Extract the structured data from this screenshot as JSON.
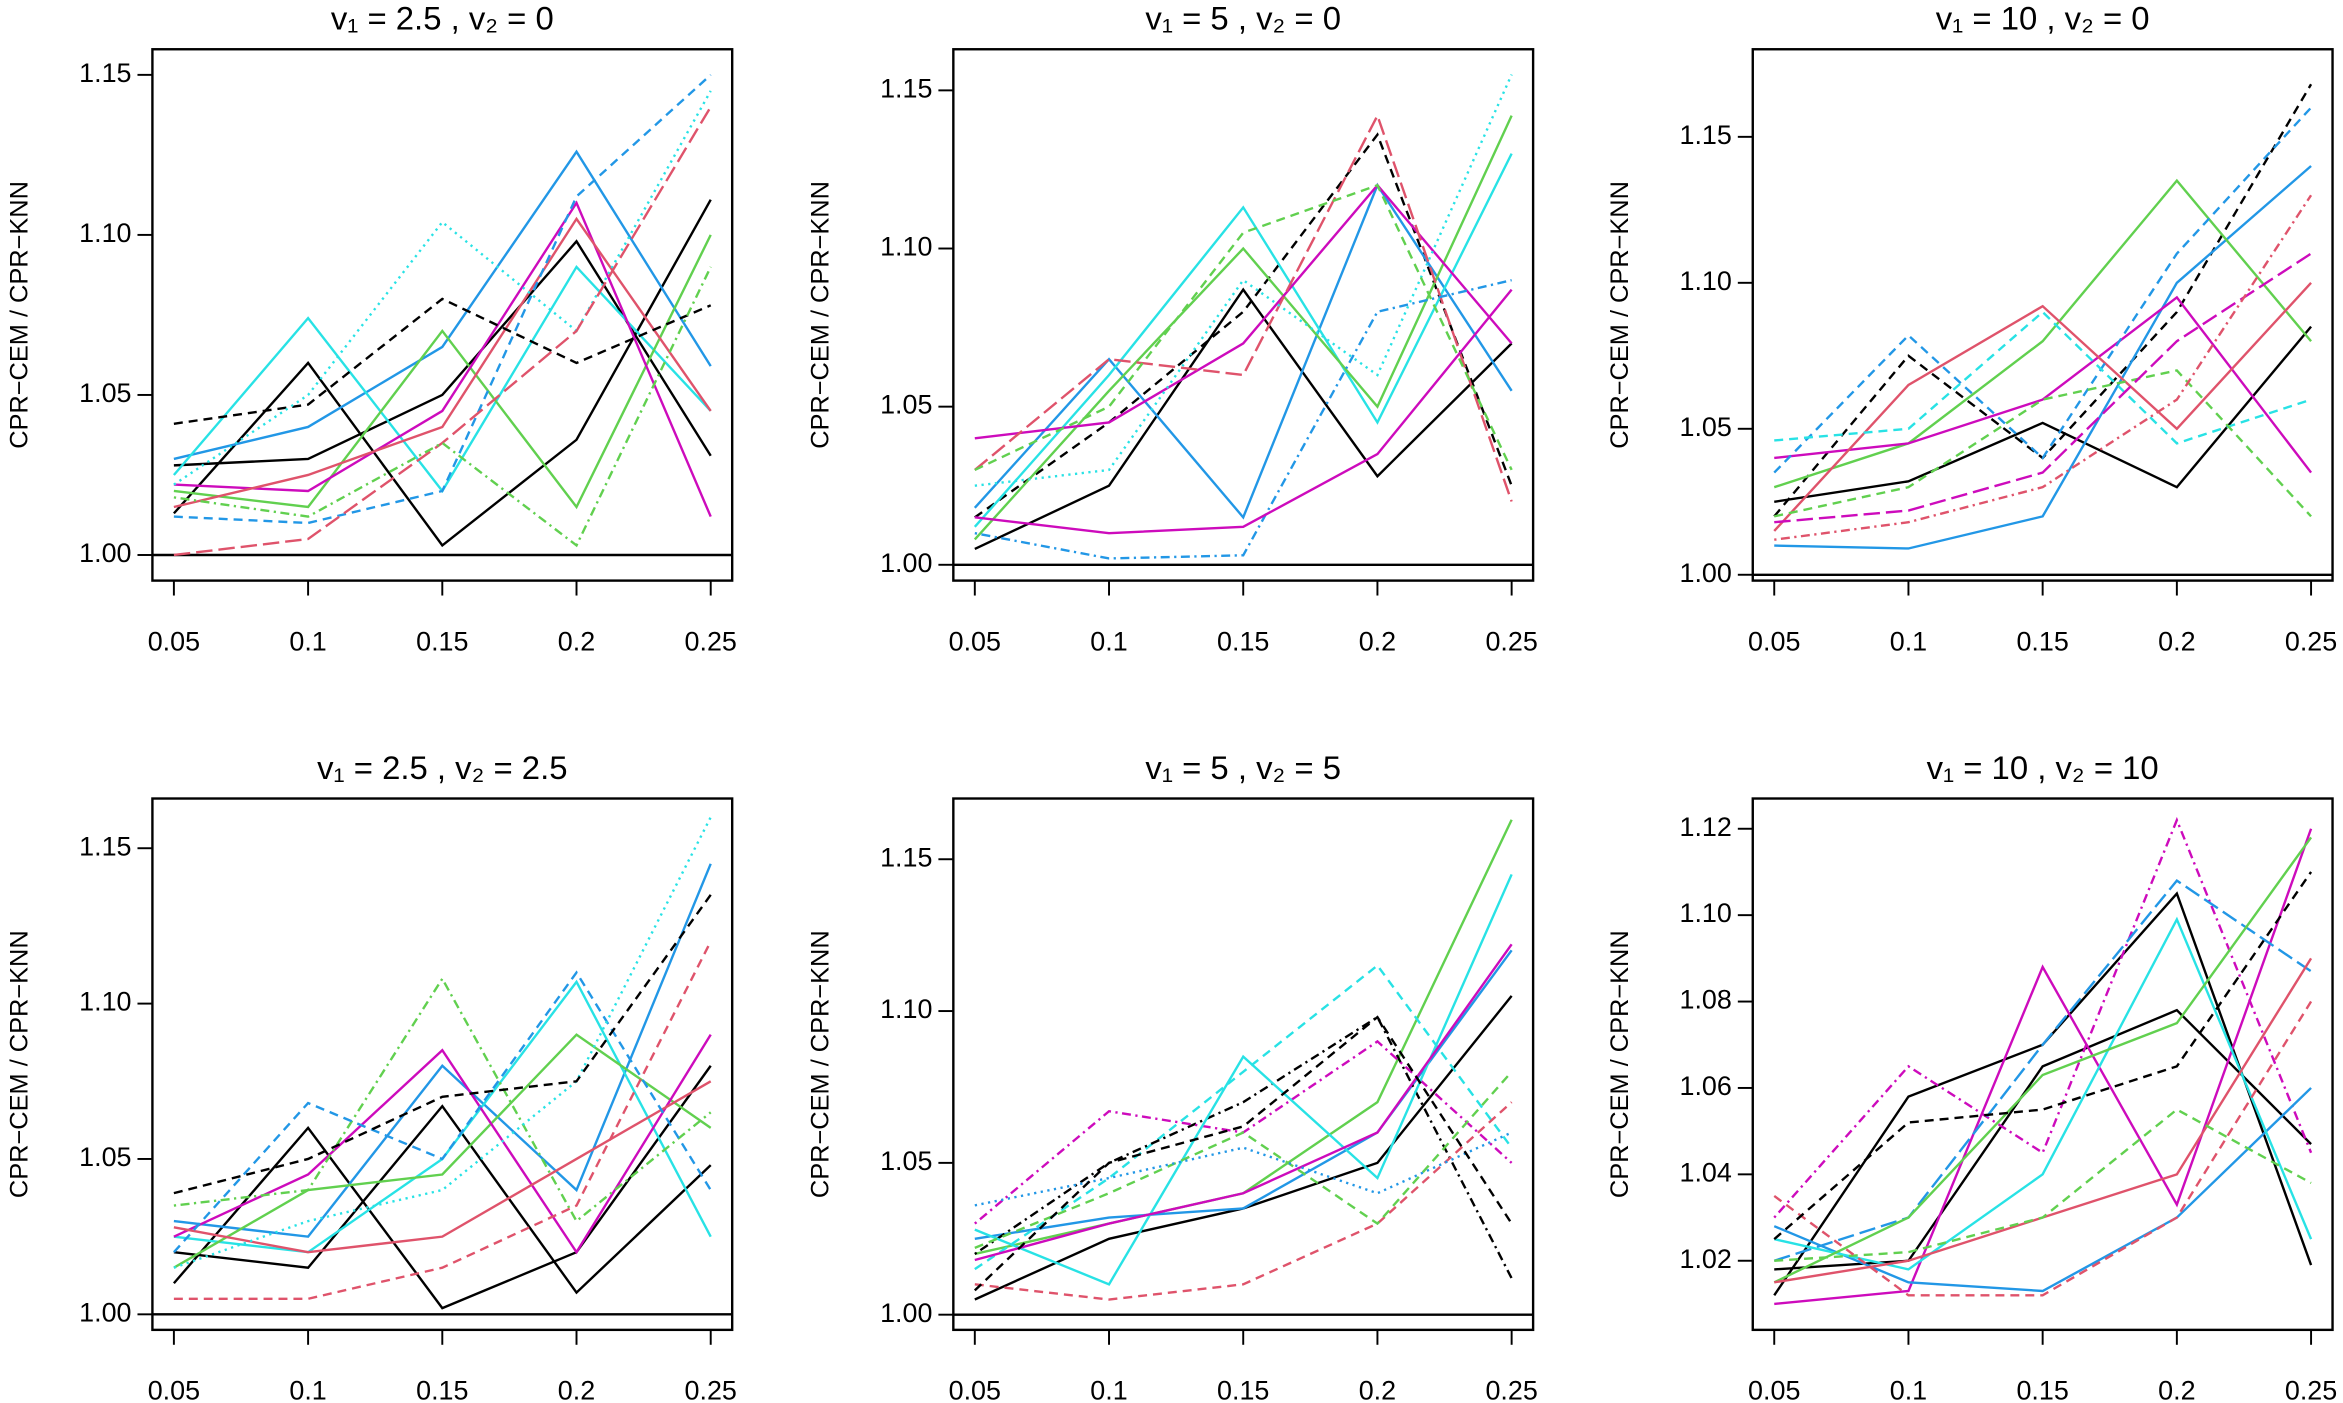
{
  "chart_data": [
    {
      "type": "line",
      "title": "v₁ = 2.5 , v₂ = 0",
      "ylabel": "CPR−CEM / CPR−KNN",
      "x": [
        0.05,
        0.1,
        0.15,
        0.2,
        0.25
      ],
      "xlim": [
        0.042,
        0.258
      ],
      "xticks": [
        0.05,
        0.1,
        0.15,
        0.2,
        0.25
      ],
      "ylim": [
        0.992,
        1.158
      ],
      "yticks": [
        {
          "value": 1,
          "label": "1.00"
        },
        1.05,
        {
          "value": 1.1,
          "label": "1.10"
        },
        1.15
      ],
      "reference_line": 1,
      "series": [
        {
          "color": "#000000",
          "dash": "solid",
          "values": [
            1.013,
            1.06,
            1.003,
            1.036,
            1.111
          ]
        },
        {
          "color": "#000000",
          "dash": "solid",
          "values": [
            1.028,
            1.03,
            1.05,
            1.098,
            1.031
          ]
        },
        {
          "color": "#2297e6",
          "dash": "solid",
          "values": [
            1.03,
            1.04,
            1.065,
            1.126,
            1.059
          ]
        },
        {
          "color": "#28e2e5",
          "dash": "solid",
          "values": [
            1.025,
            1.074,
            1.02,
            1.09,
            1.045
          ]
        },
        {
          "color": "#61d04f",
          "dash": "solid",
          "values": [
            1.02,
            1.015,
            1.07,
            1.015,
            1.1
          ]
        },
        {
          "color": "#cd0bbc",
          "dash": "solid",
          "values": [
            1.022,
            1.02,
            1.045,
            1.11,
            1.012
          ]
        },
        {
          "color": "#df536b",
          "dash": "solid",
          "values": [
            1.015,
            1.025,
            1.04,
            1.105,
            1.045
          ]
        },
        {
          "color": "#000000",
          "dash": "dashed",
          "values": [
            1.041,
            1.047,
            1.08,
            1.06,
            1.078
          ]
        },
        {
          "color": "#2297e6",
          "dash": "dashed",
          "values": [
            1.012,
            1.01,
            1.02,
            1.112,
            1.15
          ]
        },
        {
          "color": "#28e2e5",
          "dash": "dotted",
          "values": [
            1.022,
            1.05,
            1.104,
            1.07,
            1.145
          ]
        },
        {
          "color": "#df536b",
          "dash": "longdash",
          "values": [
            1.0,
            1.005,
            1.035,
            1.07,
            1.14
          ]
        },
        {
          "color": "#61d04f",
          "dash": "dotdash",
          "values": [
            1.018,
            1.012,
            1.035,
            1.003,
            1.09
          ]
        }
      ]
    },
    {
      "type": "line",
      "title": "v₁ = 5 , v₂ = 0",
      "ylabel": "CPR−CEM / CPR−KNN",
      "x": [
        0.05,
        0.1,
        0.15,
        0.2,
        0.25
      ],
      "xlim": [
        0.042,
        0.258
      ],
      "xticks": [
        0.05,
        0.1,
        0.15,
        0.2,
        0.25
      ],
      "ylim": [
        0.995,
        1.163
      ],
      "yticks": [
        {
          "value": 1,
          "label": "1.00"
        },
        1.05,
        {
          "value": 1.1,
          "label": "1.10"
        },
        1.15
      ],
      "reference_line": 1,
      "series": [
        {
          "color": "#000000",
          "dash": "solid",
          "values": [
            1.005,
            1.025,
            1.087,
            1.028,
            1.07
          ]
        },
        {
          "color": "#000000",
          "dash": "dashed",
          "values": [
            1.015,
            1.045,
            1.08,
            1.136,
            1.025
          ]
        },
        {
          "color": "#2297e6",
          "dash": "solid",
          "values": [
            1.018,
            1.065,
            1.015,
            1.12,
            1.055
          ]
        },
        {
          "color": "#28e2e5",
          "dash": "solid",
          "values": [
            1.012,
            1.06,
            1.113,
            1.045,
            1.13
          ]
        },
        {
          "color": "#61d04f",
          "dash": "solid",
          "values": [
            1.008,
            1.055,
            1.1,
            1.05,
            1.142
          ]
        },
        {
          "color": "#cd0bbc",
          "dash": "solid",
          "values": [
            1.04,
            1.045,
            1.07,
            1.12,
            1.07
          ]
        },
        {
          "color": "#df536b",
          "dash": "longdash",
          "values": [
            1.03,
            1.065,
            1.06,
            1.142,
            1.02
          ]
        },
        {
          "color": "#2297e6",
          "dash": "dotdash",
          "values": [
            1.01,
            1.002,
            1.003,
            1.08,
            1.09
          ]
        },
        {
          "color": "#cd0bbc",
          "dash": "solid",
          "values": [
            1.015,
            1.01,
            1.012,
            1.035,
            1.087
          ]
        },
        {
          "color": "#28e2e5",
          "dash": "dotted",
          "values": [
            1.025,
            1.03,
            1.09,
            1.06,
            1.155
          ]
        },
        {
          "color": "#61d04f",
          "dash": "dashed",
          "values": [
            1.03,
            1.05,
            1.105,
            1.12,
            1.03
          ]
        }
      ]
    },
    {
      "type": "line",
      "title": "v₁ = 10 , v₂ = 0",
      "ylabel": "CPR−CEM / CPR−KNN",
      "x": [
        0.05,
        0.1,
        0.15,
        0.2,
        0.25
      ],
      "xlim": [
        0.042,
        0.258
      ],
      "xticks": [
        0.05,
        0.1,
        0.15,
        0.2,
        0.25
      ],
      "ylim": [
        0.998,
        1.18
      ],
      "yticks": [
        {
          "value": 1,
          "label": "1.00"
        },
        1.05,
        {
          "value": 1.1,
          "label": "1.10"
        },
        1.15
      ],
      "reference_line": 1,
      "series": [
        {
          "color": "#000000",
          "dash": "solid",
          "values": [
            1.025,
            1.032,
            1.052,
            1.03,
            1.085
          ]
        },
        {
          "color": "#000000",
          "dash": "dashed",
          "values": [
            1.02,
            1.075,
            1.04,
            1.09,
            1.168
          ]
        },
        {
          "color": "#2297e6",
          "dash": "solid",
          "values": [
            1.01,
            1.009,
            1.02,
            1.1,
            1.14
          ]
        },
        {
          "color": "#61d04f",
          "dash": "solid",
          "values": [
            1.03,
            1.045,
            1.08,
            1.135,
            1.08
          ]
        },
        {
          "color": "#cd0bbc",
          "dash": "solid",
          "values": [
            1.04,
            1.045,
            1.06,
            1.095,
            1.035
          ]
        },
        {
          "color": "#df536b",
          "dash": "solid",
          "values": [
            1.015,
            1.065,
            1.092,
            1.05,
            1.1
          ]
        },
        {
          "color": "#2297e6",
          "dash": "dashed",
          "values": [
            1.035,
            1.082,
            1.04,
            1.11,
            1.16
          ]
        },
        {
          "color": "#28e2e5",
          "dash": "dashed",
          "values": [
            1.046,
            1.05,
            1.09,
            1.045,
            1.06
          ]
        },
        {
          "color": "#61d04f",
          "dash": "dashed",
          "values": [
            1.02,
            1.03,
            1.06,
            1.07,
            1.02
          ]
        },
        {
          "color": "#cd0bbc",
          "dash": "longdash",
          "values": [
            1.018,
            1.022,
            1.035,
            1.08,
            1.11
          ]
        },
        {
          "color": "#df536b",
          "dash": "dotdash",
          "values": [
            1.012,
            1.018,
            1.03,
            1.06,
            1.13
          ]
        }
      ]
    },
    {
      "type": "line",
      "title": "v₁ = 2.5 , v₂ = 2.5",
      "ylabel": "CPR−CEM / CPR−KNN",
      "x": [
        0.05,
        0.1,
        0.15,
        0.2,
        0.25
      ],
      "xlim": [
        0.042,
        0.258
      ],
      "xticks": [
        0.05,
        0.1,
        0.15,
        0.2,
        0.25
      ],
      "ylim": [
        0.995,
        1.166
      ],
      "yticks": [
        {
          "value": 1,
          "label": "1.00"
        },
        1.05,
        {
          "value": 1.1,
          "label": "1.10"
        },
        1.15
      ],
      "reference_line": 1,
      "series": [
        {
          "color": "#000000",
          "dash": "solid",
          "values": [
            1.01,
            1.06,
            1.002,
            1.02,
            1.08
          ]
        },
        {
          "color": "#000000",
          "dash": "solid",
          "values": [
            1.02,
            1.015,
            1.067,
            1.007,
            1.048
          ]
        },
        {
          "color": "#2297e6",
          "dash": "solid",
          "values": [
            1.03,
            1.025,
            1.08,
            1.04,
            1.145
          ]
        },
        {
          "color": "#28e2e5",
          "dash": "solid",
          "values": [
            1.025,
            1.02,
            1.05,
            1.107,
            1.025
          ]
        },
        {
          "color": "#61d04f",
          "dash": "solid",
          "values": [
            1.015,
            1.04,
            1.045,
            1.09,
            1.06
          ]
        },
        {
          "color": "#cd0bbc",
          "dash": "solid",
          "values": [
            1.025,
            1.045,
            1.085,
            1.02,
            1.09
          ]
        },
        {
          "color": "#df536b",
          "dash": "solid",
          "values": [
            1.028,
            1.02,
            1.025,
            1.05,
            1.075
          ]
        },
        {
          "color": "#61d04f",
          "dash": "dotdash",
          "values": [
            1.035,
            1.04,
            1.108,
            1.03,
            1.065
          ]
        },
        {
          "color": "#2297e6",
          "dash": "dashed",
          "values": [
            1.02,
            1.068,
            1.05,
            1.11,
            1.04
          ]
        },
        {
          "color": "#28e2e5",
          "dash": "dotted",
          "values": [
            1.015,
            1.03,
            1.04,
            1.075,
            1.16
          ]
        },
        {
          "color": "#df536b",
          "dash": "dashed",
          "values": [
            1.005,
            1.005,
            1.015,
            1.035,
            1.12
          ]
        },
        {
          "color": "#000000",
          "dash": "dashed",
          "values": [
            1.039,
            1.05,
            1.07,
            1.075,
            1.135
          ]
        }
      ]
    },
    {
      "type": "line",
      "title": "v₁ = 5 , v₂ = 5",
      "ylabel": "CPR−CEM / CPR−KNN",
      "x": [
        0.05,
        0.1,
        0.15,
        0.2,
        0.25
      ],
      "xlim": [
        0.042,
        0.258
      ],
      "xticks": [
        0.05,
        0.1,
        0.15,
        0.2,
        0.25
      ],
      "ylim": [
        0.995,
        1.17
      ],
      "yticks": [
        {
          "value": 1,
          "label": "1.00"
        },
        1.05,
        {
          "value": 1.1,
          "label": "1.10"
        },
        1.15
      ],
      "reference_line": 1,
      "series": [
        {
          "color": "#000000",
          "dash": "solid",
          "values": [
            1.005,
            1.025,
            1.035,
            1.05,
            1.105
          ]
        },
        {
          "color": "#61d04f",
          "dash": "solid",
          "values": [
            1.02,
            1.03,
            1.04,
            1.07,
            1.163
          ]
        },
        {
          "color": "#2297e6",
          "dash": "solid",
          "values": [
            1.025,
            1.032,
            1.035,
            1.06,
            1.12
          ]
        },
        {
          "color": "#28e2e5",
          "dash": "dashed",
          "values": [
            1.015,
            1.045,
            1.08,
            1.115,
            1.055
          ]
        },
        {
          "color": "#000000",
          "dash": "dotdash",
          "values": [
            1.02,
            1.05,
            1.07,
            1.098,
            1.012
          ]
        },
        {
          "color": "#cd0bbc",
          "dash": "dotdash",
          "values": [
            1.03,
            1.067,
            1.06,
            1.09,
            1.05
          ]
        },
        {
          "color": "#28e2e5",
          "dash": "solid",
          "values": [
            1.028,
            1.01,
            1.085,
            1.045,
            1.145
          ]
        },
        {
          "color": "#df536b",
          "dash": "dashed",
          "values": [
            1.01,
            1.005,
            1.01,
            1.03,
            1.07
          ]
        },
        {
          "color": "#cd0bbc",
          "dash": "solid",
          "values": [
            1.018,
            1.03,
            1.04,
            1.06,
            1.122
          ]
        },
        {
          "color": "#61d04f",
          "dash": "dashed",
          "values": [
            1.022,
            1.04,
            1.06,
            1.03,
            1.08
          ]
        },
        {
          "color": "#2297e6",
          "dash": "dotted",
          "values": [
            1.036,
            1.045,
            1.055,
            1.04,
            1.06
          ]
        },
        {
          "color": "#000000",
          "dash": "dashed",
          "values": [
            1.008,
            1.05,
            1.062,
            1.098,
            1.03
          ]
        }
      ]
    },
    {
      "type": "line",
      "title": "v₁ = 10 , v₂ = 10",
      "ylabel": "CPR−CEM / CPR−KNN",
      "x": [
        0.05,
        0.1,
        0.15,
        0.2,
        0.25
      ],
      "xlim": [
        0.042,
        0.258
      ],
      "xticks": [
        0.05,
        0.1,
        0.15,
        0.2,
        0.25
      ],
      "ylim": [
        1.004,
        1.127
      ],
      "yticks": [
        1.02,
        1.04,
        1.06,
        1.08,
        {
          "value": 1.1,
          "label": "1.10"
        },
        1.12
      ],
      "series": [
        {
          "color": "#000000",
          "dash": "solid",
          "values": [
            1.012,
            1.058,
            1.07,
            1.105,
            1.019
          ]
        },
        {
          "color": "#000000",
          "dash": "solid",
          "values": [
            1.018,
            1.02,
            1.065,
            1.078,
            1.047
          ]
        },
        {
          "color": "#cd0bbc",
          "dash": "solid",
          "values": [
            1.01,
            1.013,
            1.088,
            1.033,
            1.12
          ]
        },
        {
          "color": "#cd0bbc",
          "dash": "dotdash",
          "values": [
            1.03,
            1.065,
            1.045,
            1.122,
            1.045
          ]
        },
        {
          "color": "#2297e6",
          "dash": "solid",
          "values": [
            1.028,
            1.015,
            1.013,
            1.03,
            1.06
          ]
        },
        {
          "color": "#2297e6",
          "dash": "longdash",
          "values": [
            1.02,
            1.03,
            1.07,
            1.108,
            1.087
          ]
        },
        {
          "color": "#28e2e5",
          "dash": "solid",
          "values": [
            1.025,
            1.018,
            1.04,
            1.099,
            1.025
          ]
        },
        {
          "color": "#61d04f",
          "dash": "solid",
          "values": [
            1.015,
            1.03,
            1.063,
            1.075,
            1.118
          ]
        },
        {
          "color": "#df536b",
          "dash": "solid",
          "values": [
            1.015,
            1.02,
            1.03,
            1.04,
            1.09
          ]
        },
        {
          "color": "#61d04f",
          "dash": "dashed",
          "values": [
            1.02,
            1.022,
            1.03,
            1.055,
            1.038
          ]
        },
        {
          "color": "#df536b",
          "dash": "dashed",
          "values": [
            1.035,
            1.012,
            1.012,
            1.03,
            1.08
          ]
        },
        {
          "color": "#000000",
          "dash": "dashed",
          "values": [
            1.025,
            1.052,
            1.055,
            1.065,
            1.11
          ]
        }
      ]
    }
  ]
}
